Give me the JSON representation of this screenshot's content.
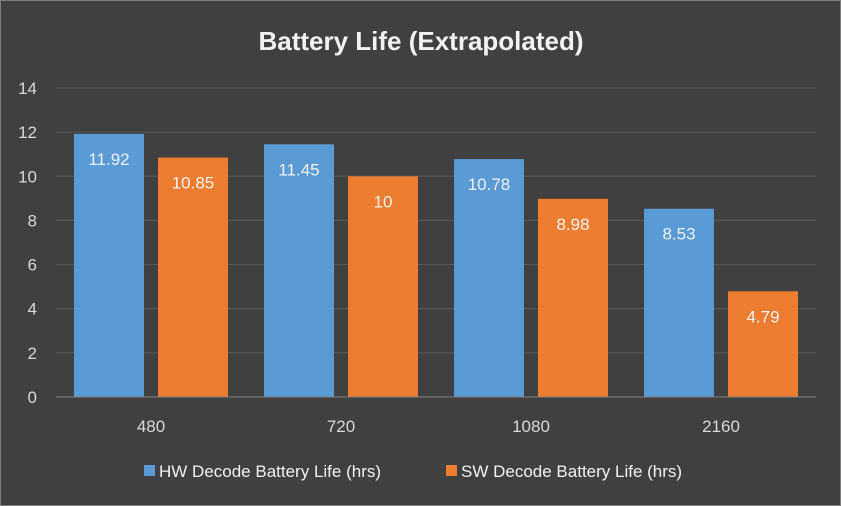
{
  "chart_data": {
    "type": "bar",
    "title": "Battery Life (Extrapolated)",
    "xlabel": "",
    "ylabel": "",
    "categories": [
      "480",
      "720",
      "1080",
      "2160"
    ],
    "series": [
      {
        "name": "HW Decode Battery Life (hrs)",
        "color": "#5b9bd5",
        "values": [
          11.92,
          11.45,
          10.78,
          8.53
        ],
        "labels": [
          "11.92",
          "11.45",
          "10.78",
          "8.53"
        ]
      },
      {
        "name": "SW Decode Battery Life (hrs)",
        "color": "#ed7d31",
        "values": [
          10.85,
          10,
          8.98,
          4.79
        ],
        "labels": [
          "10.85",
          "10",
          "8.98",
          "4.79"
        ]
      }
    ],
    "ylim": [
      0,
      14
    ],
    "yticks": [
      "0",
      "2",
      "4",
      "6",
      "8",
      "10",
      "12",
      "14"
    ],
    "grid": true,
    "legend": "bottom"
  }
}
